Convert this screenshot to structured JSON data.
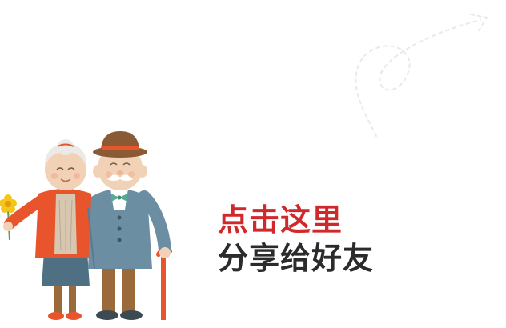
{
  "cta": {
    "line1": "点击这里",
    "line2": "分享给好友",
    "line1_color": "#d0282b",
    "line2_color": "#2b2b2b"
  },
  "illustration": {
    "icon": "elderly-couple-illustration",
    "flower_icon": "yellow-flower-icon",
    "cane_icon": "walking-cane-icon"
  },
  "decoration": {
    "icon": "dashed-arrow-decoration"
  }
}
